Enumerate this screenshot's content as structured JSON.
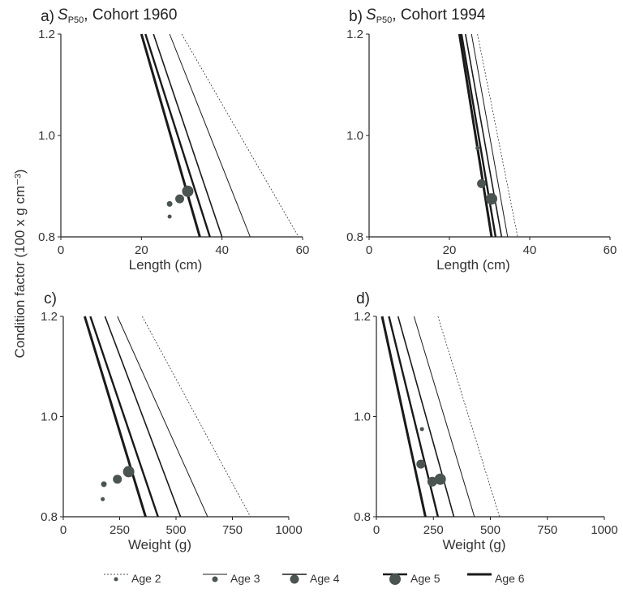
{
  "ylabel": "Condition factor (100 x g cm⁻³)",
  "colors": {
    "line": "#1a1a1a",
    "marker": "#4a5450",
    "axis": "#222222"
  },
  "legend": [
    {
      "label": "Age 2",
      "line_width": 0.7,
      "dash": "2,2",
      "marker_r": 2.5
    },
    {
      "label": "Age 3",
      "line_width": 1.0,
      "dash": "",
      "marker_r": 3.5
    },
    {
      "label": "Age 4",
      "line_width": 1.6,
      "dash": "",
      "marker_r": 5.5
    },
    {
      "label": "Age 5",
      "line_width": 2.4,
      "dash": "",
      "marker_r": 7
    },
    {
      "label": "Age 6",
      "line_width": 3.0,
      "dash": "",
      "marker_r": 0
    }
  ],
  "chart_data": [
    {
      "type": "line",
      "panel": "a)",
      "title_sym": "S",
      "title_sub": "P50",
      "title_rest": ", Cohort 1960",
      "xlabel": "Length (cm)",
      "xlim": [
        0,
        60
      ],
      "ylim": [
        0.8,
        1.2
      ],
      "xticks": [
        "0",
        "20",
        "40",
        "60"
      ],
      "yticks": [
        "0.8",
        "1.0",
        "1.2"
      ],
      "series": [
        {
          "name": "Age 2",
          "line": [
            [
              30,
              1.2
            ],
            [
              59,
              0.8
            ]
          ],
          "point": [
            27,
            0.84
          ]
        },
        {
          "name": "Age 3",
          "line": [
            [
              27,
              1.2
            ],
            [
              47,
              0.8
            ]
          ],
          "point": [
            27,
            0.865
          ]
        },
        {
          "name": "Age 4",
          "line": [
            [
              23,
              1.2
            ],
            [
              40,
              0.8
            ]
          ],
          "point": [
            29.5,
            0.875
          ]
        },
        {
          "name": "Age 5",
          "line": [
            [
              21,
              1.2
            ],
            [
              37,
              0.8
            ]
          ],
          "point": [
            31.5,
            0.89
          ]
        },
        {
          "name": "Age 6",
          "line": [
            [
              20,
              1.2
            ],
            [
              34.5,
              0.8
            ]
          ],
          "point": null
        }
      ]
    },
    {
      "type": "line",
      "panel": "b)",
      "title_sym": "S",
      "title_sub": "P50",
      "title_rest": ", Cohort 1994",
      "xlabel": "Length (cm)",
      "xlim": [
        0,
        60
      ],
      "ylim": [
        0.8,
        1.2
      ],
      "xticks": [
        "0",
        "20",
        "40",
        "60"
      ],
      "yticks": [
        "0.8",
        "1.0",
        "1.2"
      ],
      "series": [
        {
          "name": "Age 2",
          "line": [
            [
              27,
              1.2
            ],
            [
              37,
              0.8
            ]
          ],
          "point": [
            27,
            0.975
          ]
        },
        {
          "name": "Age 3",
          "line": [
            [
              25.5,
              1.2
            ],
            [
              34.5,
              0.8
            ]
          ],
          "point": null
        },
        {
          "name": "Age 4",
          "line": [
            [
              24,
              1.2
            ],
            [
              33,
              0.8
            ]
          ],
          "point": [
            28,
            0.905
          ]
        },
        {
          "name": "Age 5",
          "line": [
            [
              23,
              1.2
            ],
            [
              31.5,
              0.8
            ]
          ],
          "point": [
            30.5,
            0.875
          ]
        },
        {
          "name": "Age 6",
          "line": [
            [
              22.5,
              1.2
            ],
            [
              30.5,
              0.8
            ]
          ],
          "point": null
        }
      ]
    },
    {
      "type": "line",
      "panel": "c)",
      "xlabel": "Weight (g)",
      "xlim": [
        0,
        1000
      ],
      "ylim": [
        0.8,
        1.2
      ],
      "xticks": [
        "0",
        "250",
        "500",
        "750",
        "1000"
      ],
      "yticks": [
        "0.8",
        "1.0",
        "1.2"
      ],
      "series": [
        {
          "name": "Age 2",
          "line": [
            [
              350,
              1.2
            ],
            [
              830,
              0.8
            ]
          ],
          "point": [
            175,
            0.835
          ]
        },
        {
          "name": "Age 3",
          "line": [
            [
              240,
              1.2
            ],
            [
              640,
              0.8
            ]
          ],
          "point": [
            180,
            0.865
          ]
        },
        {
          "name": "Age 4",
          "line": [
            [
              185,
              1.2
            ],
            [
              520,
              0.8
            ]
          ],
          "point": [
            240,
            0.875
          ]
        },
        {
          "name": "Age 5",
          "line": [
            [
              120,
              1.2
            ],
            [
              420,
              0.8
            ]
          ],
          "point": [
            290,
            0.89
          ]
        },
        {
          "name": "Age 6",
          "line": [
            [
              95,
              1.2
            ],
            [
              365,
              0.8
            ]
          ],
          "point": null
        }
      ]
    },
    {
      "type": "line",
      "panel": "d)",
      "xlabel": "Weight (g)",
      "xlim": [
        0,
        1000
      ],
      "ylim": [
        0.8,
        1.2
      ],
      "xticks": [
        "0",
        "250",
        "500",
        "750",
        "1000"
      ],
      "yticks": [
        "0.8",
        "1.0",
        "1.2"
      ],
      "series": [
        {
          "name": "Age 2",
          "line": [
            [
              270,
              1.2
            ],
            [
              540,
              0.8
            ]
          ],
          "point": [
            200,
            0.975
          ]
        },
        {
          "name": "Age 3",
          "line": [
            [
              165,
              1.2
            ],
            [
              430,
              0.8
            ]
          ],
          "point": null
        },
        {
          "name": "Age 4",
          "line": [
            [
              95,
              1.2
            ],
            [
              340,
              0.8
            ]
          ],
          "point": [
            195,
            0.905
          ]
        },
        {
          "name": "Age 5",
          "line": [
            [
              55,
              1.2
            ],
            [
              270,
              0.8
            ]
          ],
          "point": [
            280,
            0.875
          ]
        },
        {
          "name": "Age 6",
          "line": [
            [
              25,
              1.2
            ],
            [
              215,
              0.8
            ]
          ],
          "point": [
            245,
            0.87
          ]
        }
      ]
    }
  ]
}
